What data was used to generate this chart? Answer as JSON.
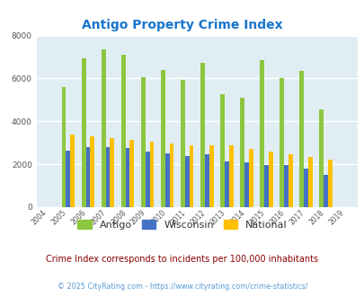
{
  "title": "Antigo Property Crime Index",
  "title_color": "#1874CD",
  "years": [
    2004,
    2005,
    2006,
    2007,
    2008,
    2009,
    2010,
    2011,
    2012,
    2013,
    2014,
    2015,
    2016,
    2017,
    2018,
    2019
  ],
  "antigo": [
    0,
    5600,
    6950,
    7350,
    7100,
    6050,
    6400,
    5950,
    6750,
    5250,
    5100,
    6850,
    6000,
    6350,
    4550,
    0
  ],
  "wisconsin": [
    0,
    2650,
    2800,
    2800,
    2750,
    2600,
    2500,
    2400,
    2450,
    2150,
    2100,
    1950,
    1950,
    1800,
    1500,
    0
  ],
  "national": [
    0,
    3400,
    3300,
    3200,
    3150,
    3050,
    2950,
    2900,
    2900,
    2900,
    2700,
    2600,
    2450,
    2350,
    2200,
    0
  ],
  "antigo_color": "#8DC63F",
  "wisconsin_color": "#4472C4",
  "national_color": "#FFC000",
  "bg_color": "#E0EEF4",
  "ylim": [
    0,
    8000
  ],
  "yticks": [
    0,
    2000,
    4000,
    6000,
    8000
  ],
  "legend_labels": [
    "Antigo",
    "Wisconsin",
    "National"
  ],
  "footnote": "Crime Index corresponds to incidents per 100,000 inhabitants",
  "copyright": "© 2025 CityRating.com - https://www.cityrating.com/crime-statistics/",
  "footnote_color": "#8B0000",
  "copyright_color": "#5B9BD5",
  "grid_color": "#FFFFFF",
  "bar_width": 0.22
}
